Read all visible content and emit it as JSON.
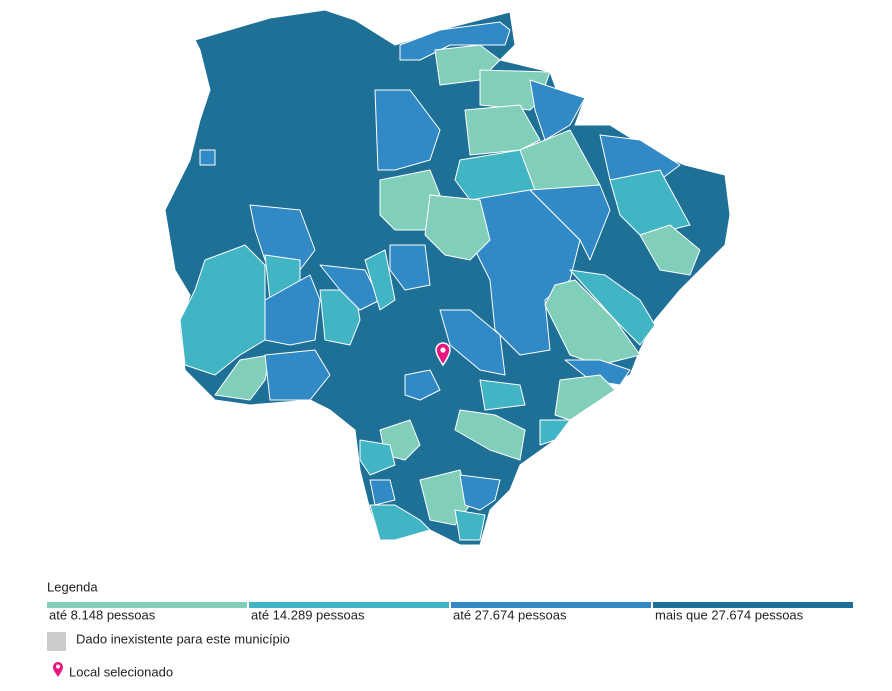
{
  "legend": {
    "title": "Legenda",
    "items": [
      {
        "label": "até 8.148 pessoas",
        "color": "#81cfba"
      },
      {
        "label": "até 14.289 pessoas",
        "color": "#42b5c5"
      },
      {
        "label": "até 27.674 pessoas",
        "color": "#3189c6"
      },
      {
        "label": "mais que 27.674 pessoas",
        "color": "#1e7097"
      }
    ],
    "missing": {
      "label": "Dado inexistente para este município",
      "color": "#cccccc"
    },
    "selected": {
      "label": "Local selecionado",
      "color": "#e6157f"
    }
  }
}
